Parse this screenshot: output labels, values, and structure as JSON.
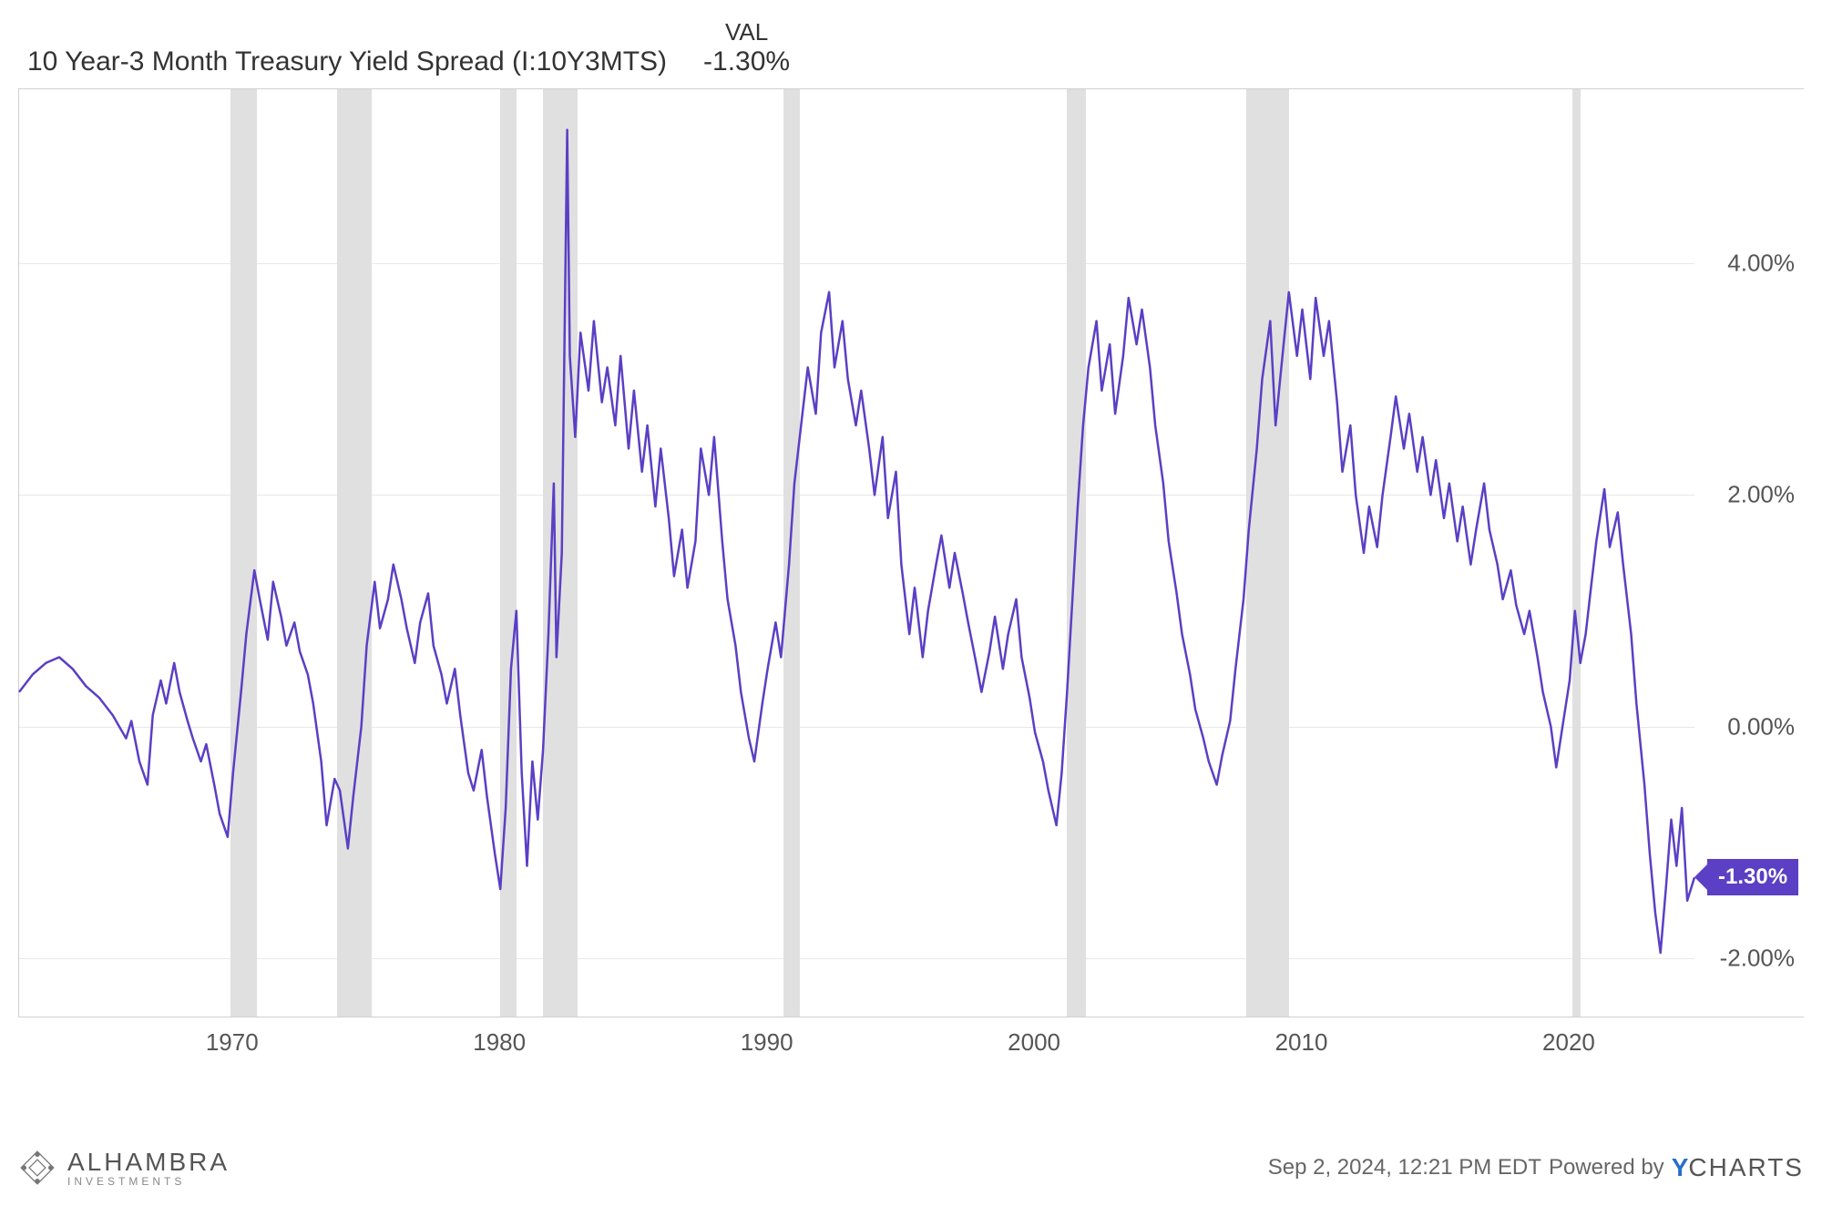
{
  "header": {
    "title": "10 Year-3 Month Treasury Yield Spread (I:10Y3MTS)",
    "val_label": "VAL",
    "val_value": "-1.30%"
  },
  "chart": {
    "type": "line",
    "line_color": "#5b3fc4",
    "line_width": 2.5,
    "background_color": "#ffffff",
    "grid_color": "#e8e8e8",
    "recession_color": "#e0e0e0",
    "x_domain": [
      1962,
      2024.67
    ],
    "y_domain": [
      -2.5,
      5.5
    ],
    "y_ticks": [
      -2.0,
      0.0,
      2.0,
      4.0
    ],
    "y_tick_labels": [
      "-2.00%",
      "0.00%",
      "2.00%",
      "4.00%"
    ],
    "x_ticks": [
      1970,
      1980,
      1990,
      2000,
      2010,
      2020
    ],
    "x_tick_labels": [
      "1970",
      "1980",
      "1990",
      "2000",
      "2010",
      "2020"
    ],
    "recessions": [
      [
        1969.9,
        1970.9
      ],
      [
        1973.9,
        1975.2
      ],
      [
        1980.0,
        1980.6
      ],
      [
        1981.6,
        1982.9
      ],
      [
        1990.6,
        1991.2
      ],
      [
        2001.2,
        2001.9
      ],
      [
        2007.9,
        2009.5
      ],
      [
        2020.1,
        2020.4
      ]
    ],
    "series": [
      [
        1962.0,
        0.3
      ],
      [
        1962.5,
        0.45
      ],
      [
        1963.0,
        0.55
      ],
      [
        1963.5,
        0.6
      ],
      [
        1964.0,
        0.5
      ],
      [
        1964.5,
        0.35
      ],
      [
        1965.0,
        0.25
      ],
      [
        1965.5,
        0.1
      ],
      [
        1966.0,
        -0.1
      ],
      [
        1966.2,
        0.05
      ],
      [
        1966.5,
        -0.3
      ],
      [
        1966.8,
        -0.5
      ],
      [
        1967.0,
        0.1
      ],
      [
        1967.3,
        0.4
      ],
      [
        1967.5,
        0.2
      ],
      [
        1967.8,
        0.55
      ],
      [
        1968.0,
        0.3
      ],
      [
        1968.3,
        0.05
      ],
      [
        1968.5,
        -0.1
      ],
      [
        1968.8,
        -0.3
      ],
      [
        1969.0,
        -0.15
      ],
      [
        1969.3,
        -0.5
      ],
      [
        1969.5,
        -0.75
      ],
      [
        1969.8,
        -0.95
      ],
      [
        1970.0,
        -0.4
      ],
      [
        1970.3,
        0.3
      ],
      [
        1970.5,
        0.8
      ],
      [
        1970.8,
        1.35
      ],
      [
        1971.0,
        1.1
      ],
      [
        1971.3,
        0.75
      ],
      [
        1971.5,
        1.25
      ],
      [
        1971.8,
        0.95
      ],
      [
        1972.0,
        0.7
      ],
      [
        1972.3,
        0.9
      ],
      [
        1972.5,
        0.65
      ],
      [
        1972.8,
        0.45
      ],
      [
        1973.0,
        0.2
      ],
      [
        1973.3,
        -0.3
      ],
      [
        1973.5,
        -0.85
      ],
      [
        1973.8,
        -0.45
      ],
      [
        1974.0,
        -0.55
      ],
      [
        1974.3,
        -1.05
      ],
      [
        1974.5,
        -0.6
      ],
      [
        1974.8,
        0.0
      ],
      [
        1975.0,
        0.7
      ],
      [
        1975.3,
        1.25
      ],
      [
        1975.5,
        0.85
      ],
      [
        1975.8,
        1.1
      ],
      [
        1976.0,
        1.4
      ],
      [
        1976.3,
        1.1
      ],
      [
        1976.5,
        0.85
      ],
      [
        1976.8,
        0.55
      ],
      [
        1977.0,
        0.9
      ],
      [
        1977.3,
        1.15
      ],
      [
        1977.5,
        0.7
      ],
      [
        1977.8,
        0.45
      ],
      [
        1978.0,
        0.2
      ],
      [
        1978.3,
        0.5
      ],
      [
        1978.5,
        0.1
      ],
      [
        1978.8,
        -0.4
      ],
      [
        1979.0,
        -0.55
      ],
      [
        1979.3,
        -0.2
      ],
      [
        1979.5,
        -0.6
      ],
      [
        1979.8,
        -1.1
      ],
      [
        1980.0,
        -1.4
      ],
      [
        1980.2,
        -0.7
      ],
      [
        1980.4,
        0.5
      ],
      [
        1980.6,
        1.0
      ],
      [
        1980.8,
        -0.4
      ],
      [
        1981.0,
        -1.2
      ],
      [
        1981.2,
        -0.3
      ],
      [
        1981.4,
        -0.8
      ],
      [
        1981.6,
        -0.2
      ],
      [
        1981.8,
        0.8
      ],
      [
        1982.0,
        2.1
      ],
      [
        1982.1,
        0.6
      ],
      [
        1982.3,
        1.5
      ],
      [
        1982.5,
        5.15
      ],
      [
        1982.6,
        3.2
      ],
      [
        1982.8,
        2.5
      ],
      [
        1983.0,
        3.4
      ],
      [
        1983.3,
        2.9
      ],
      [
        1983.5,
        3.5
      ],
      [
        1983.8,
        2.8
      ],
      [
        1984.0,
        3.1
      ],
      [
        1984.3,
        2.6
      ],
      [
        1984.5,
        3.2
      ],
      [
        1984.8,
        2.4
      ],
      [
        1985.0,
        2.9
      ],
      [
        1985.3,
        2.2
      ],
      [
        1985.5,
        2.6
      ],
      [
        1985.8,
        1.9
      ],
      [
        1986.0,
        2.4
      ],
      [
        1986.3,
        1.8
      ],
      [
        1986.5,
        1.3
      ],
      [
        1986.8,
        1.7
      ],
      [
        1987.0,
        1.2
      ],
      [
        1987.3,
        1.6
      ],
      [
        1987.5,
        2.4
      ],
      [
        1987.8,
        2.0
      ],
      [
        1988.0,
        2.5
      ],
      [
        1988.3,
        1.6
      ],
      [
        1988.5,
        1.1
      ],
      [
        1988.8,
        0.7
      ],
      [
        1989.0,
        0.3
      ],
      [
        1989.3,
        -0.1
      ],
      [
        1989.5,
        -0.3
      ],
      [
        1989.8,
        0.2
      ],
      [
        1990.0,
        0.5
      ],
      [
        1990.3,
        0.9
      ],
      [
        1990.5,
        0.6
      ],
      [
        1990.8,
        1.4
      ],
      [
        1991.0,
        2.1
      ],
      [
        1991.3,
        2.7
      ],
      [
        1991.5,
        3.1
      ],
      [
        1991.8,
        2.7
      ],
      [
        1992.0,
        3.4
      ],
      [
        1992.3,
        3.75
      ],
      [
        1992.5,
        3.1
      ],
      [
        1992.8,
        3.5
      ],
      [
        1993.0,
        3.0
      ],
      [
        1993.3,
        2.6
      ],
      [
        1993.5,
        2.9
      ],
      [
        1993.8,
        2.4
      ],
      [
        1994.0,
        2.0
      ],
      [
        1994.3,
        2.5
      ],
      [
        1994.5,
        1.8
      ],
      [
        1994.8,
        2.2
      ],
      [
        1995.0,
        1.4
      ],
      [
        1995.3,
        0.8
      ],
      [
        1995.5,
        1.2
      ],
      [
        1995.8,
        0.6
      ],
      [
        1996.0,
        1.0
      ],
      [
        1996.3,
        1.4
      ],
      [
        1996.5,
        1.65
      ],
      [
        1996.8,
        1.2
      ],
      [
        1997.0,
        1.5
      ],
      [
        1997.3,
        1.15
      ],
      [
        1997.5,
        0.9
      ],
      [
        1997.8,
        0.55
      ],
      [
        1998.0,
        0.3
      ],
      [
        1998.3,
        0.65
      ],
      [
        1998.5,
        0.95
      ],
      [
        1998.8,
        0.5
      ],
      [
        1999.0,
        0.8
      ],
      [
        1999.3,
        1.1
      ],
      [
        1999.5,
        0.6
      ],
      [
        1999.8,
        0.25
      ],
      [
        2000.0,
        -0.05
      ],
      [
        2000.3,
        -0.3
      ],
      [
        2000.5,
        -0.55
      ],
      [
        2000.8,
        -0.85
      ],
      [
        2001.0,
        -0.4
      ],
      [
        2001.2,
        0.3
      ],
      [
        2001.4,
        1.1
      ],
      [
        2001.6,
        1.9
      ],
      [
        2001.8,
        2.6
      ],
      [
        2002.0,
        3.1
      ],
      [
        2002.3,
        3.5
      ],
      [
        2002.5,
        2.9
      ],
      [
        2002.8,
        3.3
      ],
      [
        2003.0,
        2.7
      ],
      [
        2003.3,
        3.2
      ],
      [
        2003.5,
        3.7
      ],
      [
        2003.8,
        3.3
      ],
      [
        2004.0,
        3.6
      ],
      [
        2004.3,
        3.1
      ],
      [
        2004.5,
        2.6
      ],
      [
        2004.8,
        2.1
      ],
      [
        2005.0,
        1.6
      ],
      [
        2005.3,
        1.15
      ],
      [
        2005.5,
        0.8
      ],
      [
        2005.8,
        0.45
      ],
      [
        2006.0,
        0.15
      ],
      [
        2006.3,
        -0.1
      ],
      [
        2006.5,
        -0.3
      ],
      [
        2006.8,
        -0.5
      ],
      [
        2007.0,
        -0.25
      ],
      [
        2007.3,
        0.05
      ],
      [
        2007.5,
        0.5
      ],
      [
        2007.8,
        1.1
      ],
      [
        2008.0,
        1.7
      ],
      [
        2008.3,
        2.4
      ],
      [
        2008.5,
        3.0
      ],
      [
        2008.8,
        3.5
      ],
      [
        2009.0,
        2.6
      ],
      [
        2009.3,
        3.3
      ],
      [
        2009.5,
        3.75
      ],
      [
        2009.8,
        3.2
      ],
      [
        2010.0,
        3.6
      ],
      [
        2010.3,
        3.0
      ],
      [
        2010.5,
        3.7
      ],
      [
        2010.8,
        3.2
      ],
      [
        2011.0,
        3.5
      ],
      [
        2011.3,
        2.8
      ],
      [
        2011.5,
        2.2
      ],
      [
        2011.8,
        2.6
      ],
      [
        2012.0,
        2.0
      ],
      [
        2012.3,
        1.5
      ],
      [
        2012.5,
        1.9
      ],
      [
        2012.8,
        1.55
      ],
      [
        2013.0,
        2.0
      ],
      [
        2013.3,
        2.5
      ],
      [
        2013.5,
        2.85
      ],
      [
        2013.8,
        2.4
      ],
      [
        2014.0,
        2.7
      ],
      [
        2014.3,
        2.2
      ],
      [
        2014.5,
        2.5
      ],
      [
        2014.8,
        2.0
      ],
      [
        2015.0,
        2.3
      ],
      [
        2015.3,
        1.8
      ],
      [
        2015.5,
        2.1
      ],
      [
        2015.8,
        1.6
      ],
      [
        2016.0,
        1.9
      ],
      [
        2016.3,
        1.4
      ],
      [
        2016.5,
        1.7
      ],
      [
        2016.8,
        2.1
      ],
      [
        2017.0,
        1.7
      ],
      [
        2017.3,
        1.4
      ],
      [
        2017.5,
        1.1
      ],
      [
        2017.8,
        1.35
      ],
      [
        2018.0,
        1.05
      ],
      [
        2018.3,
        0.8
      ],
      [
        2018.5,
        1.0
      ],
      [
        2018.8,
        0.6
      ],
      [
        2019.0,
        0.3
      ],
      [
        2019.3,
        0.0
      ],
      [
        2019.5,
        -0.35
      ],
      [
        2019.8,
        0.1
      ],
      [
        2020.0,
        0.4
      ],
      [
        2020.2,
        1.0
      ],
      [
        2020.4,
        0.55
      ],
      [
        2020.6,
        0.8
      ],
      [
        2020.8,
        1.2
      ],
      [
        2021.0,
        1.6
      ],
      [
        2021.3,
        2.05
      ],
      [
        2021.5,
        1.55
      ],
      [
        2021.8,
        1.85
      ],
      [
        2022.0,
        1.4
      ],
      [
        2022.3,
        0.8
      ],
      [
        2022.5,
        0.2
      ],
      [
        2022.8,
        -0.5
      ],
      [
        2023.0,
        -1.1
      ],
      [
        2023.2,
        -1.6
      ],
      [
        2023.4,
        -1.95
      ],
      [
        2023.6,
        -1.4
      ],
      [
        2023.8,
        -0.8
      ],
      [
        2024.0,
        -1.2
      ],
      [
        2024.2,
        -0.7
      ],
      [
        2024.4,
        -1.5
      ],
      [
        2024.67,
        -1.3
      ]
    ],
    "flag_value": "-1.30%",
    "flag_y": -1.3
  },
  "footer": {
    "logo_text": "ALHAMBRA",
    "logo_sub": "INVESTMENTS",
    "timestamp": "Sep 2, 2024, 12:21 PM EDT",
    "powered_by_prefix": "Powered by",
    "ycharts_y": "Y",
    "ycharts_rest": "CHARTS"
  }
}
